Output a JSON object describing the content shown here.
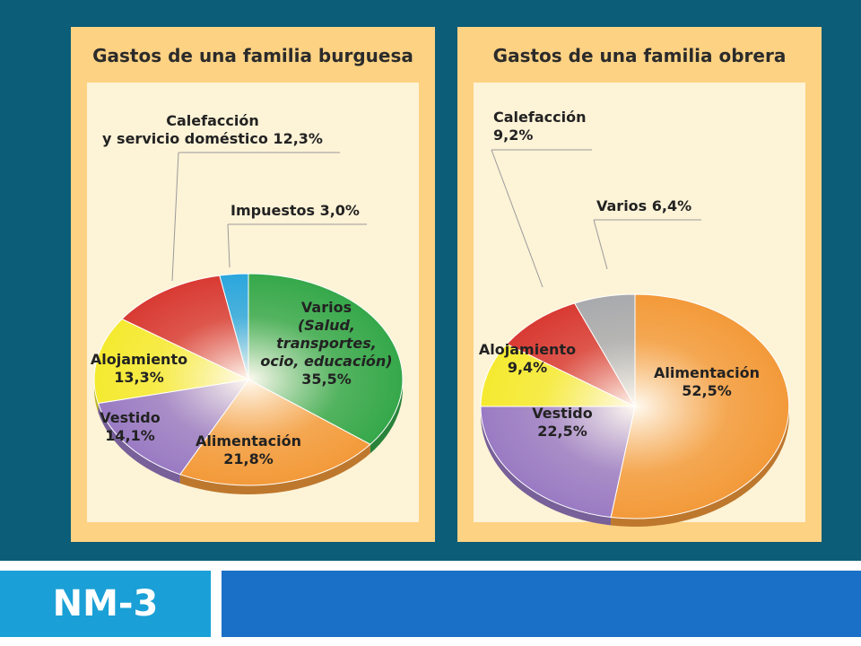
{
  "footer": {
    "code": "NM-3"
  },
  "chart_data": [
    {
      "type": "pie",
      "title": "Gastos de una familia burguesa",
      "slices": [
        {
          "label": "Varios (Salud, transportes, ocio, educación)",
          "label_lines": [
            "Varios"
          ],
          "label_italic": [
            "(Salud,",
            "transportes,",
            "ocio, educación)"
          ],
          "value_label": "35,5%",
          "value": 35.5,
          "color": "#35a84a"
        },
        {
          "label": "Alimentación",
          "label_lines": [
            "Alimentación"
          ],
          "value_label": "21,8%",
          "value": 21.8,
          "color": "#f39a3a"
        },
        {
          "label": "Vestido",
          "label_lines": [
            "Vestido"
          ],
          "value_label": "14,1%",
          "value": 14.1,
          "color": "#9a7bc4"
        },
        {
          "label": "Alojamiento",
          "label_lines": [
            "Alojamiento"
          ],
          "value_label": "13,3%",
          "value": 13.3,
          "color": "#f5ea30"
        },
        {
          "label": "Calefacción y servicio doméstico",
          "label_lines": [
            "Calefacción",
            "y servicio doméstico 12,3%"
          ],
          "value_label": "12,3%",
          "value": 12.3,
          "color": "#d83a33"
        },
        {
          "label": "Impuestos",
          "label_lines": [
            "Impuestos 3,0%"
          ],
          "value_label": "3,0%",
          "value": 3.0,
          "color": "#2ba6dd"
        }
      ]
    },
    {
      "type": "pie",
      "title": "Gastos de una familia obrera",
      "slices": [
        {
          "label": "Alimentación",
          "label_lines": [
            "Alimentación"
          ],
          "value_label": "52,5%",
          "value": 52.5,
          "color": "#f39a3a"
        },
        {
          "label": "Vestido",
          "label_lines": [
            "Vestido"
          ],
          "value_label": "22,5%",
          "value": 22.5,
          "color": "#9a7bc4"
        },
        {
          "label": "Alojamiento",
          "label_lines": [
            "Alojamiento"
          ],
          "value_label": "9,4%",
          "value": 9.4,
          "color": "#f5ea30"
        },
        {
          "label": "Calefacción",
          "label_lines": [
            "Calefacción"
          ],
          "value_label": "9,2%",
          "value": 9.2,
          "color": "#d83a33"
        },
        {
          "label": "Varios",
          "label_lines": [
            "Varios 6,4%"
          ],
          "value_label": "6,4%",
          "value": 6.4,
          "color": "#a9aaad"
        }
      ]
    }
  ]
}
